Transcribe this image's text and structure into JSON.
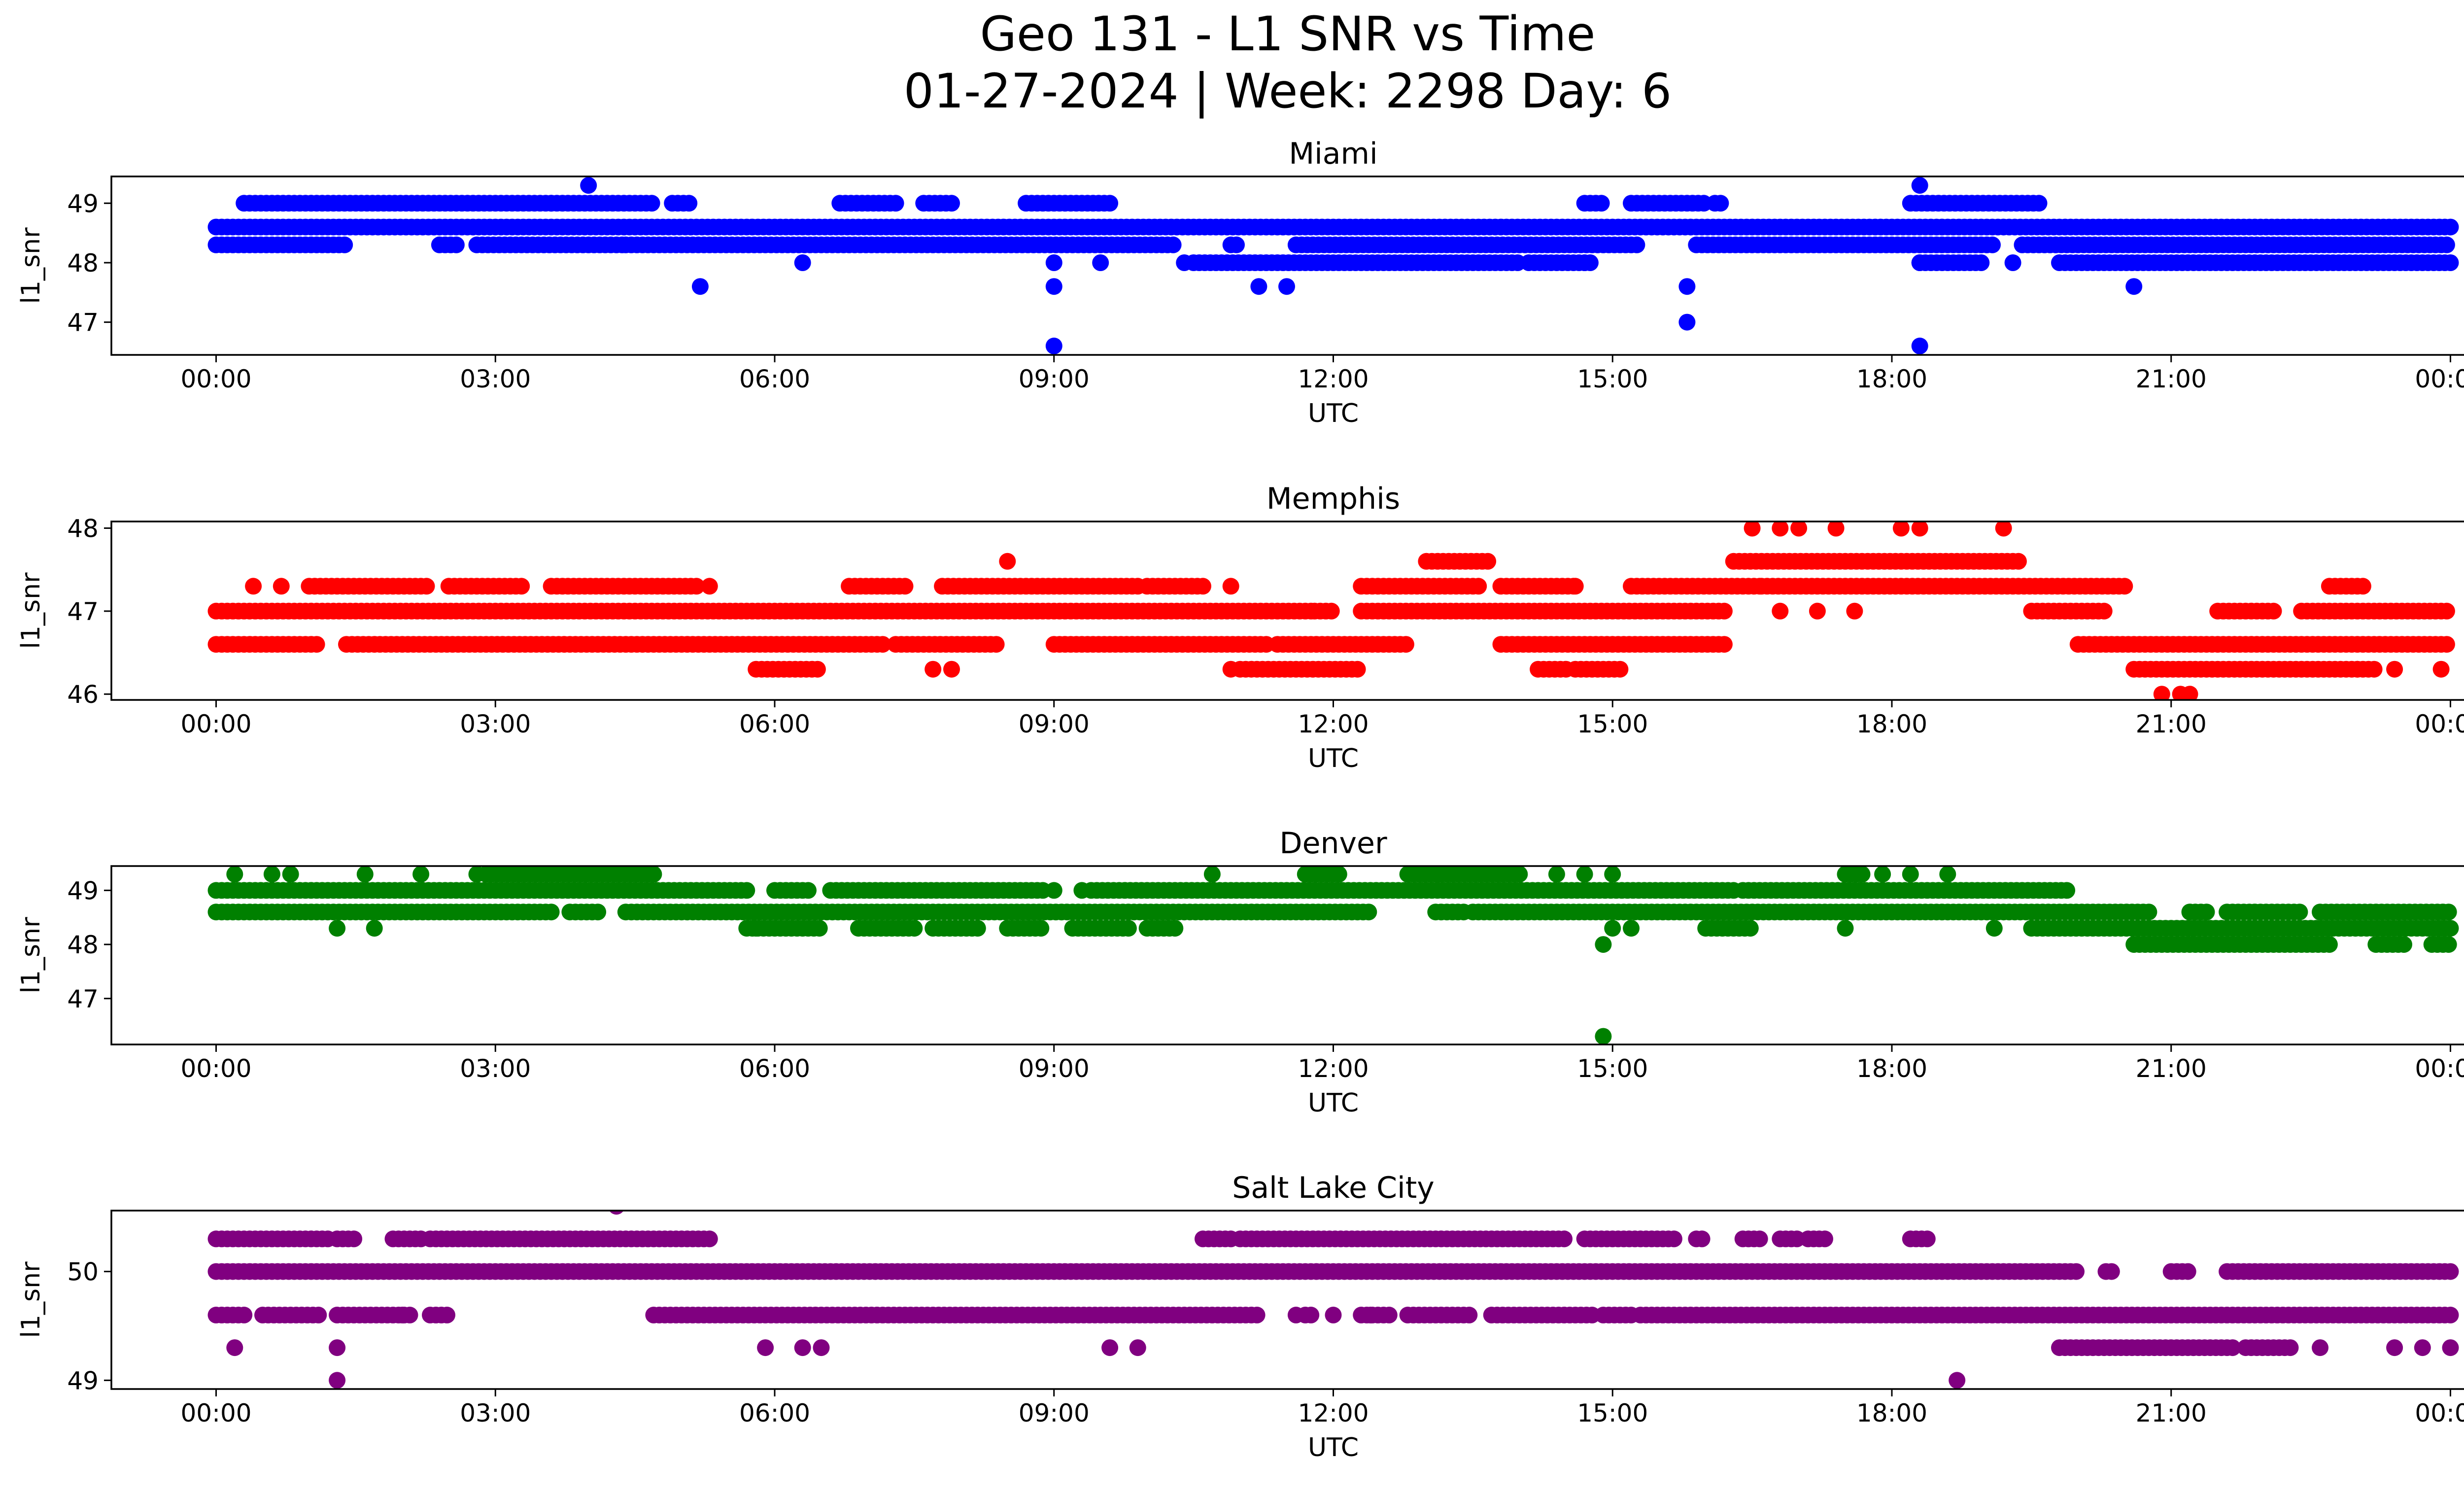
{
  "figure": {
    "title_line1": "Geo 131 - L1 SNR vs Time",
    "title_line2": "01-27-2024 | Week: 2298 Day: 6"
  },
  "chart_data": [
    {
      "type": "scatter",
      "title": "Miami",
      "xlabel": "UTC",
      "ylabel": "l1_snr",
      "color": "#0000ff",
      "x_ticks": [
        "00:00",
        "03:00",
        "06:00",
        "09:00",
        "12:00",
        "15:00",
        "18:00",
        "21:00",
        "00:00"
      ],
      "x_range_hours": [
        -1.125,
        25.125
      ],
      "y_ticks": [
        47,
        48,
        49
      ],
      "ylim": [
        46.45,
        49.45
      ],
      "levels": [
        {
          "y": 48.6,
          "segments": [
            [
              0,
              24
            ]
          ]
        },
        {
          "y": 48.3,
          "segments": [
            [
              0,
              1.4
            ],
            [
              2.4,
              2.6
            ],
            [
              2.8,
              4.4
            ],
            [
              4.4,
              10.3
            ],
            [
              10.9,
              11.0
            ],
            [
              11.6,
              15.3
            ],
            [
              15.9,
              19.1
            ],
            [
              19.4,
              24
            ]
          ]
        },
        {
          "y": 49.0,
          "segments": [
            [
              0.3,
              3.6
            ],
            [
              3.6,
              4.7
            ],
            [
              4.9,
              5.1
            ],
            [
              6.7,
              7.3
            ],
            [
              7.6,
              7.9
            ],
            [
              8.7,
              9.6
            ],
            [
              14.7,
              14.9
            ],
            [
              15.2,
              16.0
            ],
            [
              16.1,
              16.2
            ],
            [
              18.2,
              19.6
            ]
          ]
        },
        {
          "y": 48.0,
          "segments": [
            [
              10.5,
              14.0
            ],
            [
              14.1,
              14.8
            ],
            [
              18.3,
              19.0
            ],
            [
              19.8,
              24
            ]
          ]
        },
        {
          "y": 48.6,
          "segments": []
        }
      ],
      "points": [
        [
          4.0,
          49.3
        ],
        [
          18.3,
          49.3
        ],
        [
          5.2,
          47.6
        ],
        [
          9.0,
          47.6
        ],
        [
          15.8,
          47.6
        ],
        [
          11.2,
          47.6
        ],
        [
          11.5,
          47.6
        ],
        [
          20.6,
          47.6
        ],
        [
          9.0,
          46.6
        ],
        [
          18.3,
          46.6
        ],
        [
          15.8,
          47.0
        ],
        [
          6.3,
          48.0
        ],
        [
          9.0,
          48.0
        ],
        [
          9.5,
          48.0
        ],
        [
          10.4,
          48.0
        ],
        [
          14.7,
          48.0
        ],
        [
          18.3,
          48.0
        ],
        [
          19.3,
          48.0
        ]
      ]
    },
    {
      "type": "scatter",
      "title": "Memphis",
      "xlabel": "UTC",
      "ylabel": "l1_snr",
      "color": "#ff0000",
      "x_ticks": [
        "00:00",
        "03:00",
        "06:00",
        "09:00",
        "12:00",
        "15:00",
        "18:00",
        "21:00",
        "00:00"
      ],
      "x_range_hours": [
        -1.125,
        25.125
      ],
      "y_ticks": [
        46,
        47,
        48
      ],
      "ylim": [
        45.93,
        48.08
      ],
      "levels": [
        {
          "y": 47.0,
          "segments": [
            [
              0,
              11.8
            ],
            [
              11.8,
              12.0
            ],
            [
              12.3,
              16.2
            ],
            [
              19.5,
              20.3
            ],
            [
              21.5,
              22.1
            ],
            [
              22.4,
              24
            ]
          ]
        },
        {
          "y": 46.6,
          "segments": [
            [
              0,
              1.1
            ],
            [
              1.4,
              7.2
            ],
            [
              7.3,
              8.4
            ],
            [
              9.0,
              11.3
            ],
            [
              11.4,
              12.8
            ],
            [
              13.8,
              16.2
            ],
            [
              20.0,
              24
            ]
          ]
        },
        {
          "y": 47.3,
          "segments": [
            [
              1.0,
              2.3
            ],
            [
              2.5,
              3.3
            ],
            [
              3.6,
              5.2
            ],
            [
              6.8,
              7.4
            ],
            [
              7.8,
              9.9
            ],
            [
              10.0,
              10.6
            ],
            [
              12.3,
              13.6
            ],
            [
              13.8,
              14.6
            ],
            [
              15.2,
              16.6
            ],
            [
              16.6,
              20.5
            ],
            [
              22.7,
              23.1
            ]
          ]
        },
        {
          "y": 47.6,
          "segments": [
            [
              16.3,
              19.4
            ],
            [
              13.0,
              13.7
            ]
          ]
        },
        {
          "y": 46.3,
          "segments": [
            [
              5.8,
              6.5
            ],
            [
              11.0,
              12.3
            ],
            [
              14.2,
              14.5
            ],
            [
              14.6,
              15.1
            ],
            [
              20.6,
              23.2
            ]
          ]
        }
      ],
      "points": [
        [
          16.5,
          48.0
        ],
        [
          16.8,
          48.0
        ],
        [
          17.0,
          48.0
        ],
        [
          17.4,
          48.0
        ],
        [
          18.1,
          48.0
        ],
        [
          18.3,
          48.0
        ],
        [
          19.2,
          48.0
        ],
        [
          20.9,
          46.0
        ],
        [
          21.1,
          46.0
        ],
        [
          21.2,
          46.0
        ],
        [
          8.5,
          47.6
        ],
        [
          0.4,
          47.3
        ],
        [
          0.7,
          47.3
        ],
        [
          5.3,
          47.3
        ],
        [
          10.9,
          47.3
        ],
        [
          14.6,
          47.3
        ],
        [
          7.7,
          46.3
        ],
        [
          7.9,
          46.3
        ],
        [
          10.9,
          46.3
        ],
        [
          23.0,
          46.3
        ],
        [
          23.4,
          46.3
        ],
        [
          23.9,
          46.3
        ],
        [
          17.2,
          47.0
        ],
        [
          16.8,
          47.0
        ],
        [
          17.6,
          47.0
        ]
      ]
    },
    {
      "type": "scatter",
      "title": "Denver",
      "xlabel": "UTC",
      "ylabel": "l1_snr",
      "color": "#008000",
      "x_ticks": [
        "00:00",
        "03:00",
        "06:00",
        "09:00",
        "12:00",
        "15:00",
        "18:00",
        "21:00",
        "00:00"
      ],
      "x_range_hours": [
        -1.125,
        25.125
      ],
      "y_ticks": [
        47,
        48,
        49
      ],
      "ylim": [
        46.15,
        49.45
      ],
      "levels": [
        {
          "y": 49.0,
          "segments": [
            [
              0,
              5.7
            ],
            [
              6.0,
              6.4
            ],
            [
              6.6,
              8.9
            ],
            [
              9.4,
              16.3
            ],
            [
              16.4,
              19.9
            ]
          ]
        },
        {
          "y": 48.6,
          "segments": [
            [
              0,
              3.6
            ],
            [
              3.8,
              4.1
            ],
            [
              4.4,
              12.4
            ],
            [
              13.1,
              13.4
            ],
            [
              13.5,
              20.8
            ],
            [
              21.2,
              21.4
            ],
            [
              21.6,
              22.4
            ],
            [
              22.6,
              24
            ]
          ]
        },
        {
          "y": 49.3,
          "segments": [
            [
              2.9,
              4.7
            ],
            [
              11.7,
              12.1
            ],
            [
              12.8,
              14.0
            ],
            [
              17.5,
              17.7
            ]
          ]
        },
        {
          "y": 48.3,
          "segments": [
            [
              5.7,
              6.5
            ],
            [
              6.9,
              7.5
            ],
            [
              7.7,
              8.2
            ],
            [
              8.5,
              8.9
            ],
            [
              9.2,
              9.8
            ],
            [
              10.0,
              10.3
            ],
            [
              16.0,
              16.5
            ],
            [
              19.5,
              24
            ]
          ]
        },
        {
          "y": 48.0,
          "segments": [
            [
              20.6,
              22.7
            ],
            [
              23.2,
              23.5
            ],
            [
              23.8,
              24
            ]
          ]
        }
      ],
      "points": [
        [
          0.2,
          49.3
        ],
        [
          0.6,
          49.3
        ],
        [
          0.8,
          49.3
        ],
        [
          1.6,
          49.3
        ],
        [
          2.2,
          49.3
        ],
        [
          2.8,
          49.3
        ],
        [
          10.7,
          49.3
        ],
        [
          14.4,
          49.3
        ],
        [
          14.7,
          49.3
        ],
        [
          15.0,
          49.3
        ],
        [
          17.9,
          49.3
        ],
        [
          18.2,
          49.3
        ],
        [
          18.6,
          49.3
        ],
        [
          1.3,
          48.3
        ],
        [
          1.7,
          48.3
        ],
        [
          5.8,
          48.3
        ],
        [
          15.0,
          48.3
        ],
        [
          15.2,
          48.3
        ],
        [
          17.5,
          48.3
        ],
        [
          19.1,
          48.3
        ],
        [
          14.9,
          48.0
        ],
        [
          14.9,
          46.3
        ],
        [
          9.0,
          49.0
        ],
        [
          9.3,
          49.0
        ]
      ]
    },
    {
      "type": "scatter",
      "title": "Salt Lake City",
      "xlabel": "UTC",
      "ylabel": "l1_snr",
      "color": "#800080",
      "x_ticks": [
        "00:00",
        "03:00",
        "06:00",
        "09:00",
        "12:00",
        "15:00",
        "18:00",
        "21:00",
        "00:00"
      ],
      "x_range_hours": [
        -1.125,
        25.125
      ],
      "y_ticks": [
        49,
        50
      ],
      "ylim": [
        48.92,
        50.56
      ],
      "levels": [
        {
          "y": 50.0,
          "segments": [
            [
              0,
              20.0
            ],
            [
              20.3,
              20.4
            ],
            [
              21.0,
              21.2
            ],
            [
              21.6,
              24
            ]
          ]
        },
        {
          "y": 49.6,
          "segments": [
            [
              0,
              0.3
            ],
            [
              0.5,
              1.1
            ],
            [
              1.3,
              2.1
            ],
            [
              2.3,
              2.5
            ],
            [
              4.7,
              11.2
            ],
            [
              11.7,
              11.8
            ],
            [
              12.3,
              12.6
            ],
            [
              12.8,
              13.5
            ],
            [
              13.7,
              14.8
            ],
            [
              14.9,
              15.2
            ],
            [
              15.3,
              24
            ]
          ]
        },
        {
          "y": 50.3,
          "segments": [
            [
              0,
              1.2
            ],
            [
              1.3,
              1.5
            ],
            [
              1.9,
              2.2
            ],
            [
              2.3,
              5.3
            ],
            [
              10.6,
              10.9
            ],
            [
              11.0,
              14.5
            ],
            [
              14.7,
              15.7
            ],
            [
              15.9,
              16.0
            ],
            [
              16.4,
              16.6
            ],
            [
              16.8,
              17.0
            ],
            [
              17.1,
              17.3
            ],
            [
              18.2,
              18.4
            ]
          ]
        },
        {
          "y": 49.3,
          "segments": [
            [
              19.8,
              21.7
            ],
            [
              21.8,
              22.3
            ]
          ]
        }
      ],
      "points": [
        [
          4.3,
          50.6
        ],
        [
          0.2,
          49.3
        ],
        [
          1.3,
          49.3
        ],
        [
          5.9,
          49.3
        ],
        [
          6.3,
          49.3
        ],
        [
          6.5,
          49.3
        ],
        [
          9.6,
          49.3
        ],
        [
          9.9,
          49.3
        ],
        [
          22.6,
          49.3
        ],
        [
          23.4,
          49.3
        ],
        [
          23.7,
          49.3
        ],
        [
          24.0,
          49.3
        ],
        [
          1.3,
          49.0
        ],
        [
          18.7,
          49.0
        ],
        [
          2.0,
          49.6
        ],
        [
          11.6,
          49.6
        ],
        [
          12.0,
          49.6
        ],
        [
          12.4,
          49.6
        ]
      ]
    }
  ]
}
